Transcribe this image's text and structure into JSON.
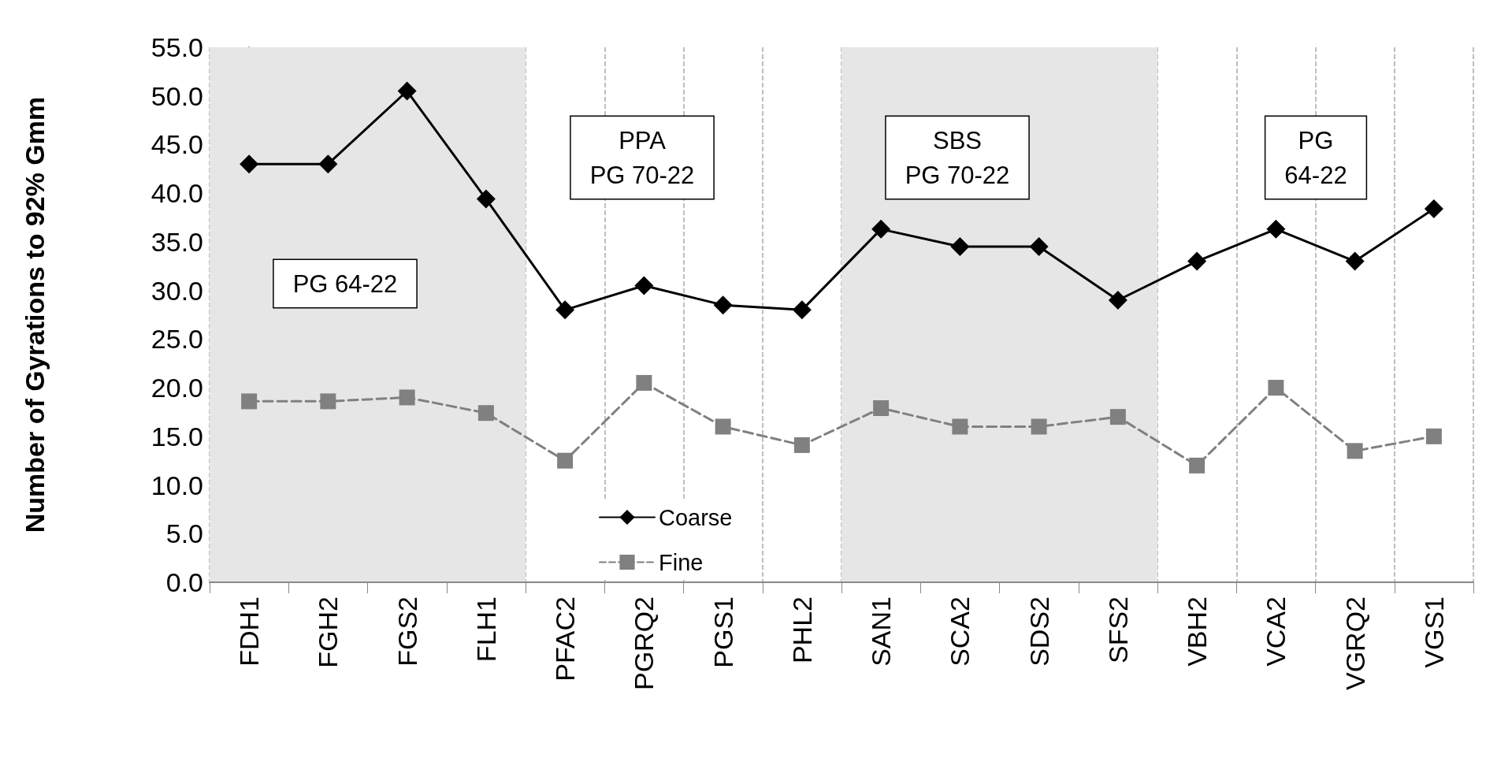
{
  "chart_data": {
    "type": "line",
    "ylabel": "Number of Gyrations to 92% Gmm",
    "categories": [
      "FDH1",
      "FGH2",
      "FGS2",
      "FLH1",
      "PFAC2",
      "PGRQ2",
      "PGS1",
      "PHL2",
      "SAN1",
      "SCA2",
      "SDS2",
      "SFS2",
      "VBH2",
      "VCA2",
      "VGRQ2",
      "VGS1"
    ],
    "series": [
      {
        "name": "Coarse",
        "color": "#000000",
        "marker": "diamond",
        "line_style": "solid",
        "values": [
          43.0,
          43.0,
          50.5,
          39.4,
          28.0,
          30.5,
          28.5,
          28.0,
          36.3,
          34.5,
          34.5,
          29.0,
          33.0,
          36.3,
          33.0,
          38.4
        ]
      },
      {
        "name": "Fine",
        "color": "#808080",
        "marker": "square",
        "line_style": "dashed",
        "values": [
          18.6,
          18.6,
          19.0,
          17.4,
          12.5,
          20.5,
          16.0,
          14.1,
          17.9,
          16.0,
          16.0,
          17.0,
          12.0,
          20.0,
          13.5,
          15.0
        ]
      }
    ],
    "ylim": [
      0,
      55
    ],
    "yticks": [
      {
        "value": 0,
        "label": "0.0"
      },
      {
        "value": 5,
        "label": "5.0"
      },
      {
        "value": 10,
        "label": "10.0"
      },
      {
        "value": 15,
        "label": "15.0"
      },
      {
        "value": 20,
        "label": "20.0"
      },
      {
        "value": 25,
        "label": "25.0"
      },
      {
        "value": 30,
        "label": "30.0"
      },
      {
        "value": 35,
        "label": "35.0"
      },
      {
        "value": 40,
        "label": "40.0"
      },
      {
        "value": 45,
        "label": "45.0"
      },
      {
        "value": 50,
        "label": "50.0"
      },
      {
        "value": 55,
        "label": "55.0"
      }
    ],
    "bands": [
      {
        "axis": "x",
        "from": "FDH1",
        "to": "FLH1",
        "color": "#e6e6e6"
      },
      {
        "axis": "x",
        "from": "SAN1",
        "to": "SFS2",
        "color": "#e6e6e6"
      }
    ],
    "annotations": [
      "PG 64-22",
      "PPA\nPG 70-22",
      "SBS\nPG 70-22",
      "PG\n64-22"
    ],
    "grid": "x",
    "legend": "bottom"
  }
}
